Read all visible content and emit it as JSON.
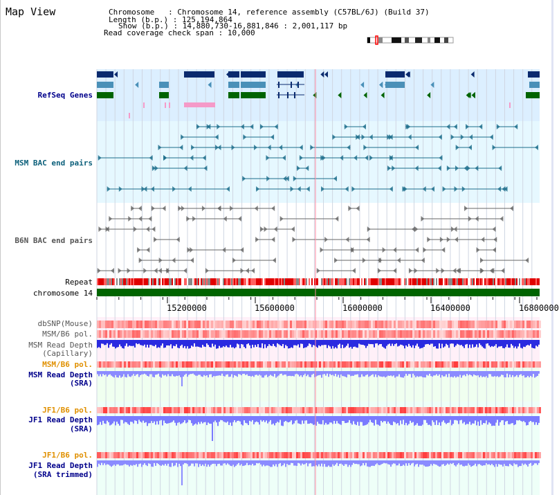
{
  "app": {
    "title": "Map View"
  },
  "header": {
    "chromosome_key": "Chromosome   ",
    "chromosome_val": "Chromosome 14, reference assembly (C57BL/6J) (Build 37)",
    "length_key": "Length (b.p.)",
    "length_val": "125,194,864",
    "show_key": "Show (b.p.)",
    "show_val": "14,880,730-16,881,846 : 2,001,117 bp",
    "coverage_key": "Read coverage check span",
    "coverage_val": "10,000"
  },
  "tracks": {
    "refseq": {
      "label": "RefSeq Genes",
      "color": "#000080"
    },
    "msm_bac": {
      "label": "MSM BAC end pairs",
      "color": "#0b5f7a"
    },
    "b6n_bac": {
      "label": "B6N BAC end pairs",
      "color": "#555555"
    },
    "repeat": {
      "label": "Repeat"
    },
    "chromosome": {
      "label": "chromosome 14"
    },
    "dbsnp": {
      "label": "dbSNP(Mouse)",
      "color": "#555555"
    },
    "msm_b6_pol_1": {
      "label": "MSM/B6 pol.",
      "color": "#555555"
    },
    "msm_read_depth_cap": {
      "label1": "MSM Read Depth",
      "label2": "(Capillary)",
      "color": "#555555"
    },
    "msm_b6_pol_2": {
      "label": "MSM/B6 pol.",
      "color": "#e09000"
    },
    "msm_read_depth_sra": {
      "label1": "MSM Read Depth",
      "label2": "(SRA)",
      "color": "#00008b"
    },
    "jf1_b6_pol_1": {
      "label": "JF1/B6 pol.",
      "color": "#e09000"
    },
    "jf1_read_depth_sra": {
      "label1": "JF1 Read Depth",
      "label2": "(SRA)",
      "color": "#00008b"
    },
    "jf1_b6_pol_2": {
      "label": "JF1/B6 pol.",
      "color": "#e09000"
    },
    "jf1_read_depth_trim": {
      "label1": "JF1 Read Depth",
      "label2": "(SRA trimmed)",
      "color": "#00008b"
    }
  },
  "axis": {
    "ticks": [
      "15200000",
      "15600000",
      "16000000",
      "16400000",
      "16800000"
    ]
  },
  "colors": {
    "refseq_bg": "#dcefff",
    "msm_bg": "#e6f8ff",
    "grid": "#c8d0dc",
    "chrom_bar": "#006400",
    "repeat_red": "#e00000",
    "depth_blue": "#2222dd",
    "depth_light": "#8888ff"
  }
}
